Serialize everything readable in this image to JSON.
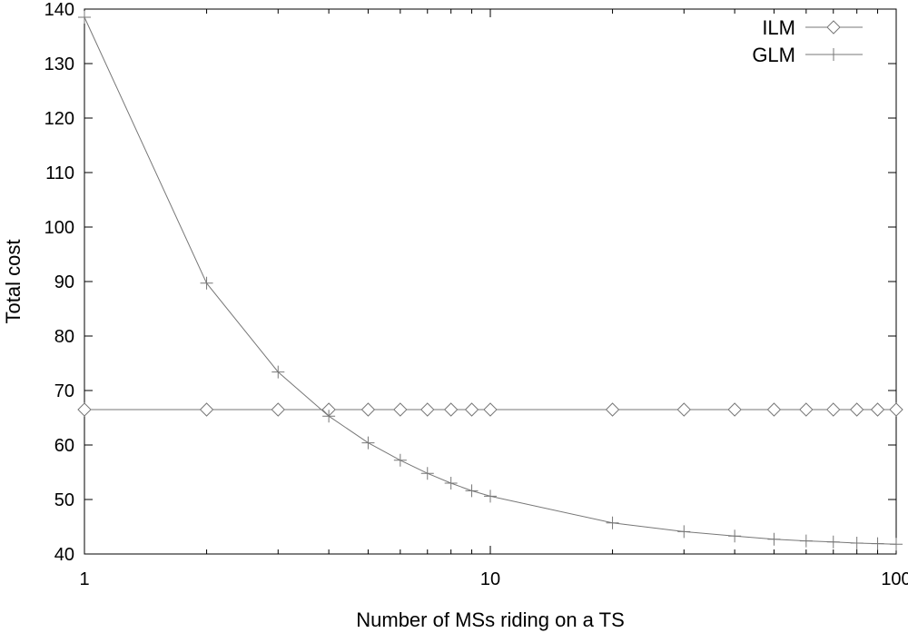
{
  "chart_data": {
    "type": "line",
    "title": "",
    "xlabel": "Number of MSs riding on a TS",
    "ylabel": "Total cost",
    "xscale": "log",
    "xlim": [
      1,
      100
    ],
    "ylim": [
      40,
      140
    ],
    "xticks": [
      1,
      10,
      100
    ],
    "yticks": [
      40,
      50,
      60,
      70,
      80,
      90,
      100,
      110,
      120,
      130,
      140
    ],
    "grid": false,
    "legend_position": "top-right",
    "series": [
      {
        "name": "ILM",
        "marker": "diamond",
        "color": "#777777",
        "x": [
          1,
          2,
          3,
          4,
          5,
          6,
          7,
          8,
          9,
          10,
          20,
          30,
          40,
          50,
          60,
          70,
          80,
          90,
          100
        ],
        "y": [
          66.5,
          66.5,
          66.5,
          66.5,
          66.5,
          66.5,
          66.5,
          66.5,
          66.5,
          66.5,
          66.5,
          66.5,
          66.5,
          66.5,
          66.5,
          66.5,
          66.5,
          66.5,
          66.5
        ]
      },
      {
        "name": "GLM",
        "marker": "plus",
        "color": "#777777",
        "x": [
          1,
          2,
          3,
          4,
          5,
          6,
          7,
          8,
          9,
          10,
          20,
          30,
          40,
          50,
          60,
          70,
          80,
          90,
          100
        ],
        "y": [
          138.5,
          89.7,
          73.4,
          65.3,
          60.4,
          57.2,
          54.8,
          53.0,
          51.6,
          50.6,
          45.7,
          44.1,
          43.3,
          42.7,
          42.4,
          42.2,
          42.0,
          41.9,
          41.8
        ]
      }
    ]
  }
}
